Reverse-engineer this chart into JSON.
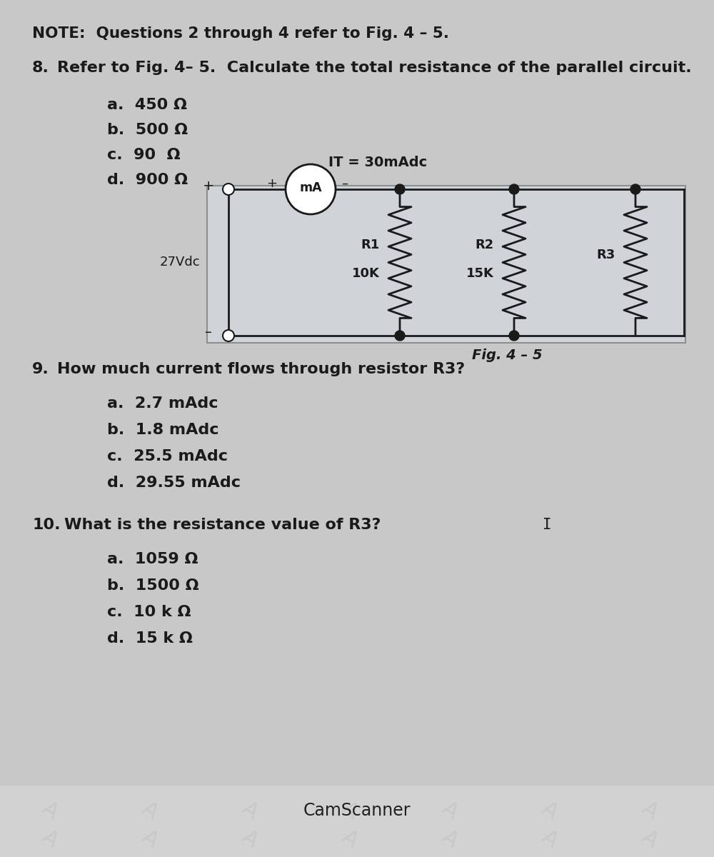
{
  "bg_color": "#c0c0c0",
  "content_bg": "#c8c8c8",
  "bottom_bg": "#d2d2d2",
  "note_text": "NOTE:  Questions 2 through 4 refer to Fig. 4 – 5.",
  "q8_num": "8.",
  "q8_text": " Refer to Fig. 4– 5.  Calculate the total resistance of the parallel circuit.",
  "q8_choices": [
    "a.  450 Ω",
    "b.  500 Ω",
    "c.  90  Ω",
    "d.  900 Ω"
  ],
  "q9_num": "9.",
  "q9_text": "  How much current flows through resistor R3?",
  "q9_choices": [
    "a.  2.7 mAdc",
    "b.  1.8 mAdc",
    "c.  25.5 mAdc",
    "d.  29.55 mAdc"
  ],
  "q10_num": "10.",
  "q10_text": " What is the resistance value of R3?",
  "q10_choices": [
    "a.  1059 Ω",
    "b.  1500 Ω",
    "c.  10 k Ω",
    "d.  15 k Ω"
  ],
  "fig_label": "Fig. 4 – 5",
  "circuit_it_label": "IT = 30mAdc",
  "circuit_vdc_label": "27Vdc",
  "circuit_r1_label": "R1",
  "circuit_r1_val": "10K",
  "circuit_r2_label": "R2",
  "circuit_r2_val": "15K",
  "circuit_r3_label": "R3",
  "circuit_ma_label": "mA",
  "camscanner_text": "CamScanner",
  "text_color": "#1a1a1a",
  "circuit_border": "#8a9090",
  "circuit_fill": "#d0d4d8",
  "line_color": "#1a1a1a"
}
